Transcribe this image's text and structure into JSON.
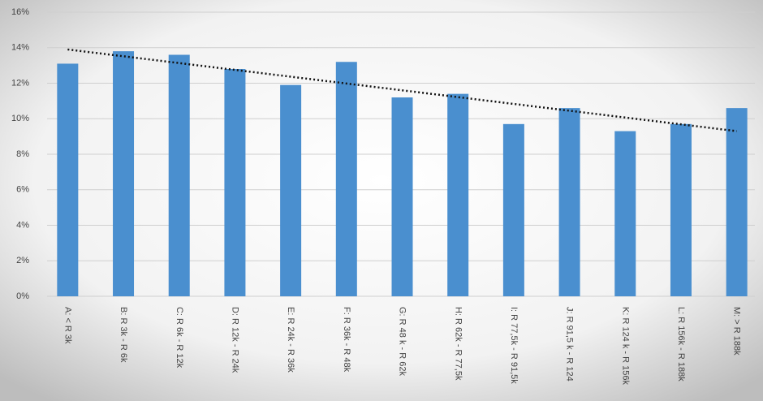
{
  "chart_data": {
    "type": "bar",
    "categories": [
      "A: < R 3k",
      "B: R 3k - R 6k",
      "C: R 6k - R 12k",
      "D: R 12k - R 24k",
      "E: R 24k - R 36k",
      "F: R 36k - R 48k",
      "G: R 48 k - R 62k",
      "H: R 62k - R 77,5k",
      "I: R 77,5k - R 91,5k",
      "J: R 91,5 k - R 124",
      "K: R 124 k - R 156k",
      "L: R 156k - R 188k",
      "M: > R 188k"
    ],
    "values": [
      13.1,
      13.8,
      13.6,
      12.8,
      11.9,
      13.2,
      11.2,
      11.4,
      9.7,
      10.6,
      9.3,
      9.7,
      10.6
    ],
    "color": "#4a8fcf",
    "trendline": [
      13.9,
      9.3
    ],
    "ylim": [
      0,
      16
    ],
    "yticks": [
      {
        "value": 0,
        "label": "0%"
      },
      {
        "value": 2,
        "label": "2%"
      },
      {
        "value": 4,
        "label": "4%"
      },
      {
        "value": 6,
        "label": "6%"
      },
      {
        "value": 8,
        "label": "8%"
      },
      {
        "value": 10,
        "label": "10%"
      },
      {
        "value": 12,
        "label": "12%"
      },
      {
        "value": 14,
        "label": "14%"
      },
      {
        "value": 16,
        "label": "16%"
      }
    ],
    "grid": true
  }
}
